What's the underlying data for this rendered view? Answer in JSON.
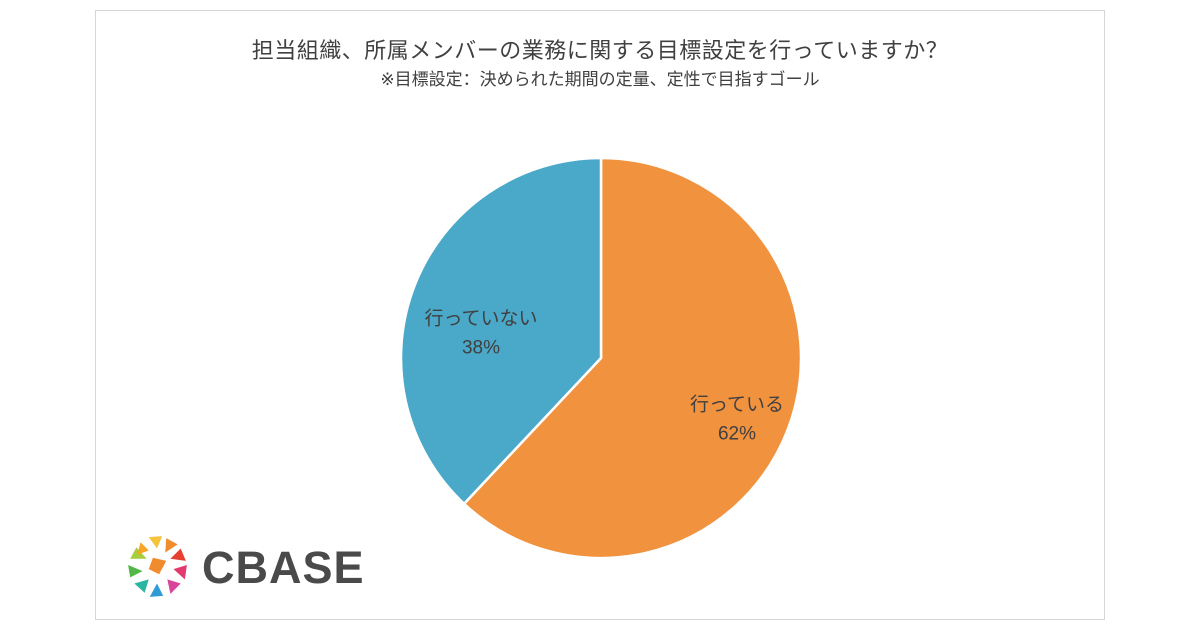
{
  "chart_data": {
    "type": "pie",
    "title": "担当組織、所属メンバーの業務に関する目標設定を行っていますか？",
    "subtitle": "※目標設定：決められた期間の定量、定性で目指すゴール",
    "slices": [
      {
        "label": "行っている",
        "value": 62,
        "value_label": "62%",
        "color": "#F0923E"
      },
      {
        "label": "行っていない",
        "value": 38,
        "value_label": "38%",
        "color": "#4AA8C8"
      }
    ],
    "start_angle_deg": 0,
    "direction": "clockwise",
    "legend_position": "none",
    "labels": "inside",
    "slice_border_color": "#FFFFFF"
  },
  "branding": {
    "logo_text": "CBASE"
  },
  "colors": {
    "title_text": "#404040",
    "label_text": "#404040",
    "panel_border": "#D6D6D6",
    "background": "#FFFFFF"
  }
}
